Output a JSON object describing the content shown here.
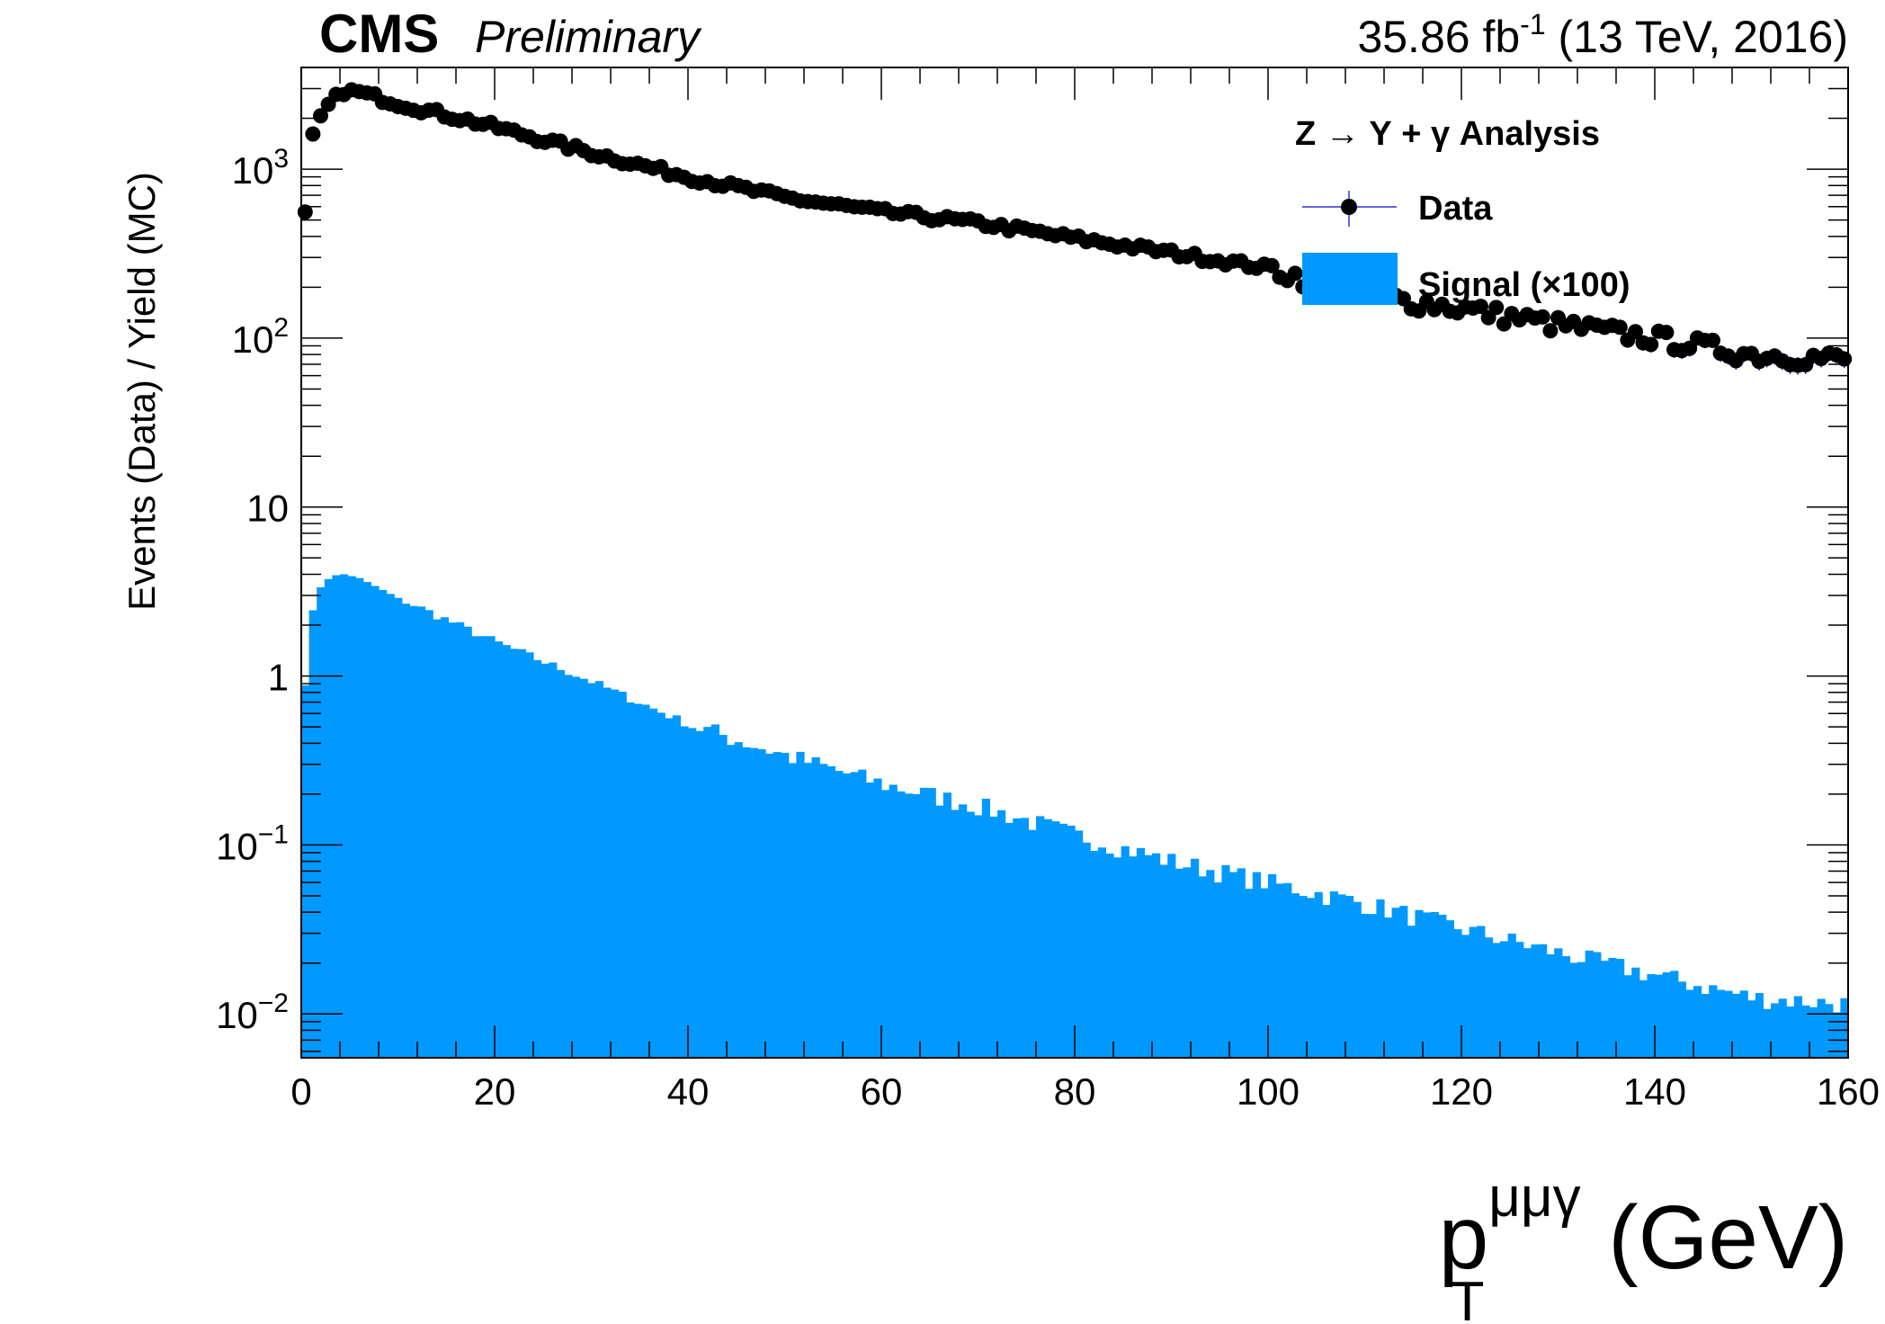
{
  "header": {
    "experiment": "CMS",
    "status": "Preliminary",
    "luminosity": "35.86 fb",
    "lumi_exponent": "-1",
    "energy": " (13 TeV, 2016)"
  },
  "legend": {
    "title": "Z → Υ + γ Analysis",
    "data_label": "Data",
    "signal_label": "Signal (×100)"
  },
  "axes": {
    "ylabel": "Events (Data) / Yield (MC)",
    "xlabel_main": "p",
    "xlabel_sub": "T",
    "xlabel_sup": "μμγ",
    "xlabel_unit": " (GeV)"
  },
  "chart_data": {
    "type": "bar",
    "x_range": [
      0,
      160
    ],
    "y_range": [
      0.0055,
      4000
    ],
    "y_scale": "log",
    "bin_width": 0.8,
    "x_ticks": [
      0,
      20,
      40,
      60,
      80,
      100,
      120,
      140,
      160
    ],
    "x_tick_labels": [
      "0",
      "20",
      "40",
      "60",
      "80",
      "100",
      "120",
      "140",
      "160"
    ],
    "y_ticks": [
      {
        "value": 0.01,
        "base": "10",
        "exp": "−2"
      },
      {
        "value": 0.1,
        "base": "10",
        "exp": "−1"
      },
      {
        "value": 1,
        "base": "1",
        "exp": ""
      },
      {
        "value": 10,
        "base": "10",
        "exp": ""
      },
      {
        "value": 100,
        "base": "10",
        "exp": "2"
      },
      {
        "value": 1000,
        "base": "10",
        "exp": "3"
      }
    ],
    "colors": {
      "signal": "#0099ff",
      "data": "#000000",
      "data_error": "#3333cc"
    },
    "series": [
      {
        "name": "Data",
        "kind": "points",
        "model": "piecewise_log_linear",
        "anchors_x": [
          0.4,
          1.2,
          2.4,
          3.6,
          4.4,
          6,
          10,
          20,
          30,
          40,
          50,
          60,
          70,
          80,
          90,
          100,
          110,
          120,
          130,
          140,
          150,
          159.6
        ],
        "anchors_y": [
          540,
          1550,
          2250,
          2650,
          2900,
          2850,
          2450,
          1780,
          1250,
          900,
          680,
          560,
          480,
          390,
          320,
          260,
          180,
          150,
          120,
          100,
          80,
          75
        ]
      },
      {
        "name": "Signal (×100)",
        "kind": "histogram",
        "model": "piecewise_log_linear",
        "anchors_x": [
          0.4,
          1.2,
          2.0,
          2.8,
          3.6,
          4.4,
          6,
          10,
          20,
          30,
          40,
          50,
          60,
          70,
          80,
          90,
          100,
          110,
          120,
          130,
          140,
          150,
          159.6
        ],
        "anchors_y": [
          0.88,
          2.45,
          3.35,
          3.75,
          3.95,
          4.0,
          3.8,
          2.9,
          1.6,
          0.93,
          0.52,
          0.34,
          0.23,
          0.17,
          0.115,
          0.08,
          0.06,
          0.045,
          0.032,
          0.023,
          0.017,
          0.0125,
          0.0115
        ]
      }
    ]
  }
}
